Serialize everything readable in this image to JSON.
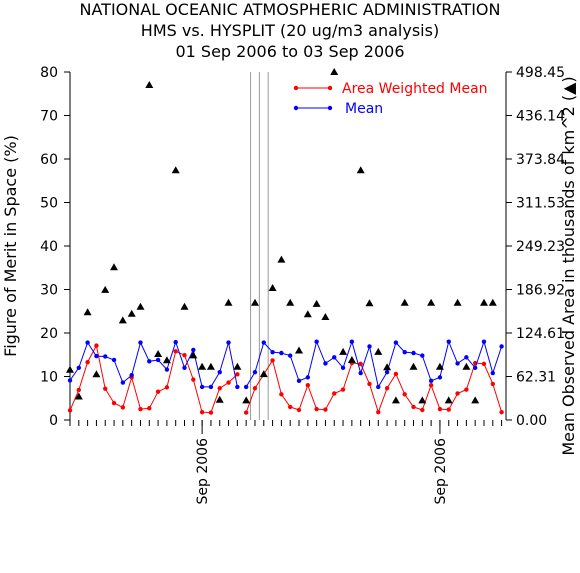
{
  "chart_data": {
    "type": "line",
    "title": [
      "NATIONAL OCEANIC ATMOSPHERIC ADMINISTRATION",
      "HMS vs. HYSPLIT (20 ug/m3 analysis)",
      "01 Sep 2006 to 03 Sep 2006"
    ],
    "ylabel": "Figure of Merit in Space (%)",
    "y2label": "Mean Observed Area in thousands of km^2 (▲)",
    "ylim": [
      0,
      80
    ],
    "y2lim": [
      0,
      498.45
    ],
    "yticks": [
      "0",
      "10",
      "20",
      "30",
      "40",
      "50",
      "60",
      "70",
      "80"
    ],
    "y2ticks": [
      "0.00",
      "62.31",
      "124.61",
      "186.92",
      "249.23",
      "311.53",
      "373.84",
      "436.14",
      "498.45"
    ],
    "x_tick_labels": [
      {
        "label": "Sep 2006",
        "x": 15
      },
      {
        "label": "Sep 2006",
        "x": 42
      }
    ],
    "x_range": [
      0,
      49.5
    ],
    "x_minor_ticks": 50,
    "vertical_lines": [
      20.5,
      21.5,
      22.5
    ],
    "legend": {
      "position": "top-right",
      "entries": [
        {
          "name": "Area Weighted Mean",
          "color": "#ff0000"
        },
        {
          "name": "Mean",
          "color": "#0000ff"
        }
      ]
    },
    "series": [
      {
        "name": "Area Weighted Mean",
        "color": "#ff0000",
        "segments": [
          {
            "x": [
              0,
              1,
              2,
              3,
              4,
              5,
              6,
              7,
              8,
              9,
              10,
              11,
              12,
              13,
              14,
              15,
              16,
              17,
              18,
              19
            ],
            "y": [
              2.2,
              6.9,
              13.3,
              17.1,
              7.2,
              3.9,
              2.9,
              9.8,
              2.5,
              2.7,
              6.5,
              7.5,
              15.8,
              14.9,
              9.3,
              1.8,
              1.7,
              7.3,
              8.6,
              10.5
            ]
          },
          {
            "x": [
              20,
              21,
              22,
              23,
              24,
              25,
              26,
              27,
              28,
              29,
              30,
              31,
              32,
              33,
              34,
              35,
              36,
              37,
              38,
              39,
              40,
              41,
              42,
              43,
              44,
              45,
              46,
              47,
              48,
              49
            ],
            "y": [
              1.7,
              7.3,
              10.5,
              13.7,
              5.9,
              3.0,
              2.3,
              8.0,
              2.5,
              2.4,
              6.1,
              7.0,
              13.1,
              12.9,
              8.3,
              1.8,
              7.3,
              10.6,
              5.9,
              3.0,
              2.3,
              8.0,
              2.5,
              2.4,
              6.1,
              7.0,
              13.1,
              12.9,
              8.3,
              1.8
            ]
          }
        ]
      },
      {
        "name": "Mean",
        "color": "#0000ff",
        "segments": [
          {
            "x": [
              0,
              1,
              2,
              3,
              4,
              5,
              6,
              7,
              8,
              9,
              10,
              11,
              12,
              13,
              14,
              15,
              16,
              17,
              18,
              19
            ],
            "y": [
              9.1,
              12.0,
              17.8,
              14.7,
              14.6,
              13.8,
              8.6,
              10.3,
              17.8,
              13.5,
              13.8,
              11.6,
              17.9,
              12.0,
              16.1,
              7.6,
              7.6,
              11.0,
              17.8,
              7.6
            ]
          },
          {
            "x": [
              20,
              21,
              22,
              23,
              24,
              25,
              26,
              27,
              28,
              29,
              30,
              31,
              32,
              33,
              34,
              35,
              36,
              37,
              38,
              39,
              40,
              41,
              42,
              43,
              44,
              45,
              46,
              47,
              48,
              49
            ],
            "y": [
              7.6,
              11.0,
              17.8,
              15.6,
              15.4,
              14.8,
              9.0,
              9.8,
              18.0,
              13.0,
              14.4,
              12.0,
              18.0,
              10.8,
              16.9,
              7.6,
              11.0,
              17.8,
              15.6,
              15.4,
              14.8,
              9.0,
              9.8,
              18.0,
              13.0,
              14.4,
              12.0,
              18.0,
              10.8,
              16.9
            ]
          }
        ]
      },
      {
        "name": "",
        "marker": "triangle",
        "color": "#000000",
        "axis": "right",
        "x": [
          0,
          1,
          2,
          3,
          4,
          5,
          6,
          7,
          8,
          9,
          10,
          11,
          12,
          13,
          14,
          15,
          16,
          17,
          18,
          19,
          20,
          21,
          22,
          23,
          24,
          25,
          26,
          27,
          28,
          29,
          30,
          31,
          32,
          33,
          34,
          35,
          36,
          37,
          38,
          39,
          40,
          41,
          42,
          43,
          44,
          45,
          46,
          47,
          48
        ],
        "y": [
          72.1,
          33.7,
          154.4,
          65.4,
          186.4,
          218.7,
          142.6,
          152.2,
          162.3,
          479.9,
          94.6,
          85.5,
          357.8,
          162.3,
          92.5,
          76.4,
          76.4,
          29.1,
          167.9,
          76.4,
          28.1,
          167.9,
          65.8,
          189.0,
          229.7,
          167.9,
          99.5,
          151.6,
          166.3,
          147.6,
          498.4,
          97.5,
          86.0,
          357.7,
          167.2,
          97.5,
          75.6,
          28.1,
          167.9,
          76.4,
          28.1,
          167.9,
          76.4,
          28.1,
          167.9,
          76.4,
          28.1,
          167.9,
          167.9
        ]
      }
    ]
  }
}
